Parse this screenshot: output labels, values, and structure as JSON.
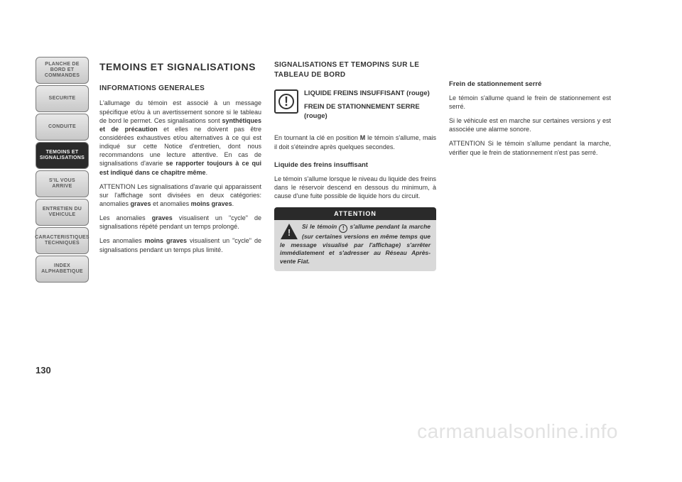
{
  "tabs": [
    {
      "label": "PLANCHE DE\nBORD ET\nCOMMANDES",
      "active": false
    },
    {
      "label": "SECURITE",
      "active": false
    },
    {
      "label": "CONDUITE",
      "active": false
    },
    {
      "label": "TEMOINS ET\nSIGNALISATIONS",
      "active": true
    },
    {
      "label": "S'IL VOUS\nARRIVE",
      "active": false
    },
    {
      "label": "ENTRETIEN DU\nVEHICULE",
      "active": false
    },
    {
      "label": "CARACTERISTIQUES\nTECHNIQUES",
      "active": false
    },
    {
      "label": "INDEX\nALPHABETIQUE",
      "active": false
    }
  ],
  "col1": {
    "title": "TEMOINS ET SIGNALISATIONS",
    "subhead": "INFORMATIONS GENERALES",
    "p1a": "L'allumage du témoin est associé à un message spécifique et/ou à un avertissement sonore si le tableau de bord le permet. Ces signalisations sont ",
    "p1b": "synthétiques et de précaution",
    "p1c": " et elles ne doivent pas être considérées exhaustives et/ou alternatives à ce qui est indiqué sur cette Notice d'entretien, dont nous recommandons une lecture attentive. En cas de signalisations d'avarie ",
    "p1d": "se rapporter toujours à ce qui est indiqué dans ce chapitre même",
    "p1e": ".",
    "p2a": "ATTENTION Les signalisations d'avarie qui apparaissent sur l'affichage sont divisées en deux catégories: anomalies ",
    "p2b": "graves",
    "p2c": " et anomalies ",
    "p2d": "moins graves",
    "p2e": ".",
    "p3a": "Les anomalies ",
    "p3b": "graves",
    "p3c": " visualisent un \"cycle\" de signalisations répété pendant un temps prolongé.",
    "p4a": "Les anomalies ",
    "p4b": "moins graves",
    "p4c": " visualisent un \"cycle\" de signalisations pendant un temps plus limité."
  },
  "col2": {
    "section": "SIGNALISATIONS ET TEMOPINS SUR LE TABLEAU DE BORD",
    "h_liquid": "LIQUIDE FREINS INSUFFISANT (rouge)",
    "h_frein": "FREIN DE STATIONNEMENT SERRE (rouge)",
    "p1a": "En tournant la clé en position ",
    "p1b": "M",
    "p1c": " le témoin s'allume, mais il doit s'éteindre après quelques secondes.",
    "h_sub": "Liquide des freins insuffisant",
    "p2": "Le témoin s'allume lorsque le niveau du liquide des freins dans le réservoir descend en dessous du minimum, à cause d'une fuite possible de liquide hors du circuit.",
    "attn_label": "ATTENTION",
    "attn_a": "Si le témoin ",
    "attn_b": " s'allume pendant la marche (sur certaines versions en même temps que le message visualisé par l'affichage) s'arrêter immédiatement et s'adresser au Réseau Après-vente Fiat."
  },
  "col3": {
    "h_sub": "Frein de stationnement serré",
    "p1": "Le témoin s'allume quand le frein de stationnement est serré.",
    "p2": "Si le véhicule est en marche sur certaines versions y est associée une alarme sonore.",
    "p3": "ATTENTION Si le témoin s'allume pendant la marche, vérifier que le frein de stationnement n'est pas serré."
  },
  "pagenum": "130",
  "watermark": "carmanualsonline.info"
}
